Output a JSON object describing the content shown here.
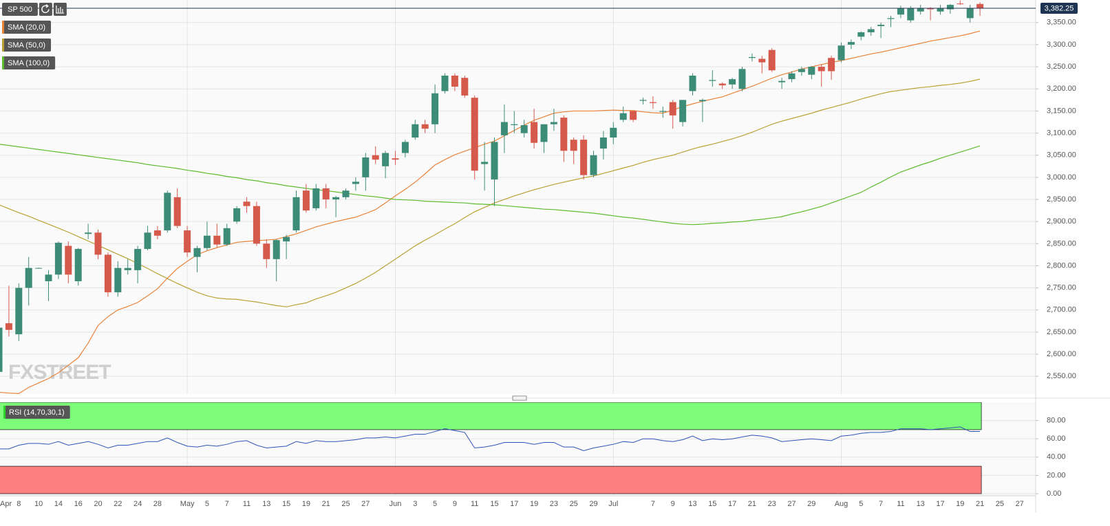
{
  "chart_data": [
    {
      "type": "candlestick",
      "name": "SP 500",
      "watermark": "FXSTREET",
      "up_color": "#3d8c77",
      "down_color": "#d65a4c",
      "categories": [
        "Apr",
        null,
        "8",
        null,
        "10",
        null,
        "14",
        null,
        "16",
        null,
        "20",
        null,
        "22",
        null,
        "24",
        null,
        "28",
        null,
        null,
        "May",
        null,
        "5",
        null,
        "7",
        null,
        "11",
        null,
        "13",
        null,
        "15",
        null,
        "19",
        null,
        "21",
        null,
        "25",
        null,
        "27",
        null,
        null,
        "Jun",
        null,
        "3",
        null,
        "5",
        null,
        "9",
        null,
        "11",
        null,
        "15",
        null,
        "17",
        null,
        "19",
        null,
        "23",
        null,
        "25",
        null,
        "29",
        null,
        "Jul",
        null,
        null,
        null,
        "7",
        null,
        "9",
        null,
        "13",
        null,
        "15",
        null,
        "17",
        null,
        "21",
        null,
        "23",
        null,
        "27",
        null,
        "29",
        null,
        null,
        "Aug",
        null,
        "5",
        null,
        "7",
        null,
        "11",
        null,
        "13",
        null,
        "17",
        null,
        "19",
        null,
        "21",
        null,
        "25",
        null,
        "27",
        null
      ],
      "open": [
        2560,
        2670,
        2645,
        2750,
        2795,
        2765,
        2780,
        2845,
        2765,
        2872,
        2875,
        2825,
        2740,
        2790,
        2790,
        2838,
        2880,
        2880,
        2955,
        2880,
        2820,
        2840,
        2868,
        2848,
        2900,
        2945,
        2935,
        2850,
        2815,
        2855,
        2880,
        2970,
        2930,
        2975,
        2950,
        2955,
        2985,
        3000,
        3050,
        3025,
        3043,
        3055,
        3090,
        3120,
        3120,
        3195,
        3230,
        3225,
        3180,
        3030,
        2995,
        3095,
        3118,
        3100,
        3125,
        3080,
        3120,
        3135,
        3085,
        3085,
        3005,
        3065,
        3090,
        3130,
        3150,
        3173,
        3170,
        3148,
        3170,
        3125,
        3195,
        3172,
        3218,
        3212,
        3210,
        3200,
        3270,
        3268,
        3288,
        3215,
        3222,
        3238,
        3232,
        3250,
        3270,
        3265,
        3300,
        3318,
        3328,
        3342,
        3358,
        3368,
        3355,
        3375,
        3382,
        3375,
        3380,
        3393,
        3360,
        3392,
        null,
        null,
        null,
        null,
        null
      ],
      "high": [
        2680,
        2755,
        2760,
        2820,
        2796,
        2790,
        2855,
        2855,
        2840,
        2895,
        2882,
        2830,
        2810,
        2815,
        2845,
        2890,
        2890,
        2970,
        2975,
        2890,
        2845,
        2900,
        2895,
        2895,
        2935,
        2955,
        2945,
        2860,
        2860,
        2870,
        2970,
        2985,
        2985,
        2985,
        2958,
        2975,
        3000,
        3055,
        3070,
        3060,
        3060,
        3085,
        3130,
        3130,
        3210,
        3235,
        3235,
        3230,
        3185,
        3080,
        3090,
        3165,
        3150,
        3130,
        3155,
        3120,
        3155,
        3140,
        3090,
        3095,
        3060,
        3105,
        3125,
        3160,
        3150,
        3180,
        3183,
        3160,
        3175,
        3175,
        3235,
        3178,
        3242,
        3215,
        3225,
        3250,
        3280,
        3275,
        3292,
        3225,
        3240,
        3250,
        3252,
        3255,
        3275,
        3305,
        3312,
        3330,
        3340,
        3350,
        3365,
        3388,
        3387,
        3390,
        3385,
        3390,
        3392,
        3400,
        3390,
        3396,
        null,
        null,
        null,
        null,
        null
      ],
      "low": [
        2545,
        2640,
        2630,
        2710,
        2794,
        2720,
        2770,
        2760,
        2755,
        2860,
        2815,
        2730,
        2730,
        2780,
        2760,
        2835,
        2860,
        2875,
        2885,
        2820,
        2785,
        2835,
        2842,
        2845,
        2895,
        2920,
        2845,
        2795,
        2765,
        2815,
        2875,
        2920,
        2925,
        2930,
        2910,
        2950,
        2970,
        2970,
        3030,
        2998,
        3028,
        3045,
        3085,
        3100,
        3100,
        3190,
        3195,
        3180,
        2995,
        2970,
        2935,
        3055,
        3100,
        3090,
        3065,
        3055,
        3105,
        3035,
        3030,
        2995,
        3000,
        3040,
        3075,
        3125,
        3125,
        3165,
        3155,
        3135,
        3110,
        3115,
        3185,
        3125,
        3205,
        3200,
        3200,
        3195,
        3262,
        3235,
        3238,
        3200,
        3215,
        3230,
        3222,
        3205,
        3220,
        3260,
        3290,
        3310,
        3320,
        3315,
        3340,
        3360,
        3350,
        3368,
        3355,
        3368,
        3370,
        3390,
        3350,
        3365,
        null,
        null,
        null,
        null,
        null
      ],
      "close": [
        2660,
        2655,
        2750,
        2795,
        2795,
        2780,
        2852,
        2780,
        2838,
        2875,
        2825,
        2740,
        2795,
        2795,
        2838,
        2875,
        2868,
        2965,
        2890,
        2830,
        2840,
        2868,
        2848,
        2885,
        2930,
        2935,
        2850,
        2815,
        2858,
        2865,
        2955,
        2925,
        2975,
        2950,
        2955,
        2970,
        2990,
        3045,
        3040,
        3055,
        3040,
        3080,
        3120,
        3110,
        3190,
        3230,
        3205,
        3185,
        3015,
        3035,
        3080,
        3125,
        3120,
        3118,
        3078,
        3120,
        3125,
        3060,
        3060,
        3005,
        3050,
        3090,
        3112,
        3145,
        3130,
        3175,
        3168,
        3150,
        3140,
        3175,
        3230,
        3175,
        3220,
        3208,
        3222,
        3245,
        3272,
        3260,
        3242,
        3218,
        3235,
        3245,
        3250,
        3240,
        3240,
        3298,
        3306,
        3328,
        3335,
        3345,
        3360,
        3382,
        3383,
        3383,
        3380,
        3383,
        3390,
        3392,
        3382,
        3382.25,
        null,
        null,
        null,
        null,
        null
      ],
      "series": [
        {
          "name": "SMA (20,0)",
          "color": "#e8833a",
          "values": [
            2514,
            2512,
            2511,
            2525,
            2535,
            2545,
            2558,
            2575,
            2592,
            2625,
            2665,
            2685,
            2700,
            2708,
            2717,
            2732,
            2748,
            2772,
            2794,
            2810,
            2825,
            2834,
            2841,
            2847,
            2853,
            2855,
            2857,
            2858,
            2860,
            2866,
            2872,
            2880,
            2888,
            2894,
            2900,
            2905,
            2910,
            2918,
            2927,
            2942,
            2958,
            2973,
            2989,
            3008,
            3028,
            3040,
            3051,
            3059,
            3067,
            3075,
            3082,
            3094,
            3106,
            3118,
            3129,
            3137,
            3145,
            3148,
            3150,
            3150,
            3150,
            3151,
            3152,
            3151,
            3151,
            3148,
            3146,
            3145,
            3152,
            3160,
            3166,
            3172,
            3177,
            3182,
            3190,
            3198,
            3206,
            3215,
            3224,
            3232,
            3238,
            3245,
            3250,
            3255,
            3260,
            3264,
            3269,
            3274,
            3279,
            3283,
            3288,
            3293,
            3298,
            3303,
            3308,
            3312,
            3316,
            3320,
            3325,
            3331,
            null,
            null,
            null,
            null,
            null
          ]
        },
        {
          "name": "SMA (50,0)",
          "color": "#b9a233",
          "values": [
            2938,
            2929,
            2920,
            2912,
            2903,
            2894,
            2885,
            2876,
            2866,
            2856,
            2846,
            2836,
            2826,
            2816,
            2805,
            2794,
            2782,
            2771,
            2760,
            2750,
            2740,
            2732,
            2727,
            2725,
            2724,
            2721,
            2718,
            2714,
            2710,
            2707,
            2712,
            2716,
            2725,
            2732,
            2740,
            2750,
            2760,
            2772,
            2785,
            2800,
            2815,
            2830,
            2845,
            2858,
            2870,
            2883,
            2895,
            2909,
            2922,
            2932,
            2942,
            2950,
            2958,
            2965,
            2972,
            2978,
            2984,
            2989,
            2994,
            2999,
            3003,
            3009,
            3015,
            3021,
            3027,
            3034,
            3040,
            3045,
            3050,
            3057,
            3064,
            3070,
            3075,
            3081,
            3087,
            3094,
            3102,
            3111,
            3120,
            3127,
            3133,
            3139,
            3145,
            3152,
            3158,
            3164,
            3170,
            3177,
            3183,
            3189,
            3194,
            3197,
            3200,
            3203,
            3205,
            3208,
            3210,
            3213,
            3217,
            3222,
            null,
            null,
            null,
            null,
            null
          ]
        },
        {
          "name": "SMA (100,0)",
          "color": "#5dbb2e",
          "values": [
            3075,
            3072,
            3069,
            3066,
            3063,
            3060,
            3057,
            3054,
            3051,
            3048,
            3045,
            3042,
            3039,
            3036,
            3033,
            3029,
            3026,
            3023,
            3020,
            3016,
            3013,
            3009,
            3006,
            3002,
            2999,
            2995,
            2992,
            2988,
            2985,
            2981,
            2978,
            2975,
            2972,
            2970,
            2967,
            2964,
            2961,
            2958,
            2956,
            2953,
            2950,
            2949,
            2948,
            2946,
            2945,
            2944,
            2943,
            2942,
            2940,
            2939,
            2938,
            2936,
            2934,
            2932,
            2930,
            2928,
            2927,
            2925,
            2923,
            2921,
            2919,
            2916,
            2913,
            2910,
            2908,
            2905,
            2902,
            2899,
            2896,
            2894,
            2893,
            2894,
            2896,
            2897,
            2899,
            2900,
            2903,
            2905,
            2908,
            2911,
            2917,
            2922,
            2928,
            2934,
            2942,
            2950,
            2958,
            2966,
            2978,
            2989,
            3001,
            3012,
            3020,
            3028,
            3035,
            3043,
            3050,
            3057,
            3064,
            3071,
            null,
            null,
            null,
            null,
            null
          ]
        }
      ],
      "last_price": {
        "value": 3382.25,
        "label": "3,382.25"
      },
      "ylim": [
        2510,
        3401
      ],
      "yticks": [
        {
          "value": 2550,
          "label": "2,550.00"
        },
        {
          "value": 2600,
          "label": "2,600.00"
        },
        {
          "value": 2650,
          "label": "2,650.00"
        },
        {
          "value": 2700,
          "label": "2,700.00"
        },
        {
          "value": 2750,
          "label": "2,750.00"
        },
        {
          "value": 2800,
          "label": "2,800.00"
        },
        {
          "value": 2850,
          "label": "2,850.00"
        },
        {
          "value": 2900,
          "label": "2,900.00"
        },
        {
          "value": 2950,
          "label": "2,950.00"
        },
        {
          "value": 3000,
          "label": "3,000.00"
        },
        {
          "value": 3050,
          "label": "3,050.00"
        },
        {
          "value": 3100,
          "label": "3,100.00"
        },
        {
          "value": 3150,
          "label": "3,150.00"
        },
        {
          "value": 3200,
          "label": "3,200.00"
        },
        {
          "value": 3250,
          "label": "3,250.00"
        },
        {
          "value": 3300,
          "label": "3,300.00"
        },
        {
          "value": 3350,
          "label": "3,350.00"
        }
      ],
      "grid": true
    },
    {
      "type": "line",
      "series": [
        {
          "name": "RSI (14,70,30,1)",
          "color": "#2d53b5",
          "values": [
            49,
            49,
            53,
            55,
            55,
            54,
            57,
            53,
            55,
            57,
            54,
            50,
            53,
            53,
            55,
            57,
            57,
            61,
            56,
            52,
            51,
            53,
            52,
            54,
            57,
            58,
            53,
            50,
            51,
            52,
            57,
            55,
            58,
            57,
            57,
            58,
            59,
            61,
            61,
            62,
            61,
            63,
            65,
            65,
            68,
            71,
            69,
            67,
            50,
            51,
            53,
            56,
            56,
            56,
            54,
            56,
            56,
            51,
            51,
            47,
            50,
            52,
            54,
            57,
            56,
            60,
            60,
            58,
            57,
            59,
            63,
            58,
            60,
            59,
            60,
            62,
            64,
            63,
            61,
            57,
            58,
            59,
            60,
            59,
            58,
            63,
            64,
            66,
            67,
            67,
            68,
            71,
            71,
            71,
            70,
            71,
            72,
            73,
            68,
            68,
            null,
            null,
            null,
            null,
            null
          ]
        }
      ],
      "bands": [
        {
          "from": 70,
          "to": 100,
          "color": "#7dfc7a"
        },
        {
          "from": 0,
          "to": 30,
          "color": "#fd7f7f"
        }
      ],
      "ylim": [
        0,
        100
      ],
      "yticks": [
        {
          "value": 0,
          "label": "0.00"
        },
        {
          "value": 20,
          "label": "20.00"
        },
        {
          "value": 40,
          "label": "40.00"
        },
        {
          "value": 60,
          "label": "60.00"
        },
        {
          "value": 80,
          "label": "80.00"
        }
      ],
      "grid": true
    }
  ]
}
